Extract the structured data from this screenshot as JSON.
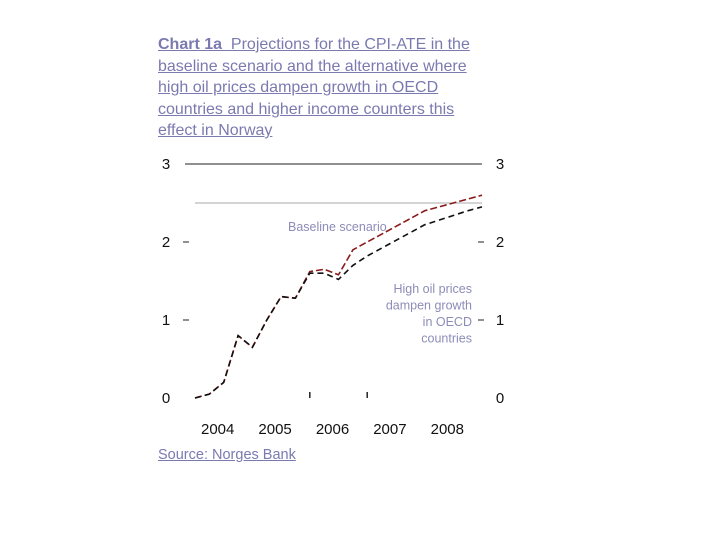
{
  "title": {
    "label": "Chart 1a",
    "text": "Projections for the CPI-ATE in the baseline scenario and the alternative where high oil prices dampen growth in OECD countries and higher income counters this effect in Norway"
  },
  "source": {
    "label": "Source:",
    "text": "Norges Bank"
  },
  "colors": {
    "baseline": "#8b1a1a",
    "high_oil": "#111111",
    "annotation": "#8c8cb8"
  },
  "chart_data": {
    "type": "line",
    "title": "Chart 1a  Projections for the CPI-ATE in the baseline scenario and the alternative where high oil prices dampen growth in OECD countries and higher income counters this effect in Norway",
    "xlabel": "",
    "ylabel": "",
    "xlim": [
      2004,
      2009
    ],
    "ylim": [
      0,
      3
    ],
    "x_ticks": [
      "2004",
      "2005",
      "2006",
      "2007",
      "2008"
    ],
    "y_ticks_left": [
      "0",
      "1",
      "2",
      "3"
    ],
    "y_ticks_right": [
      "0",
      "1",
      "2",
      "3"
    ],
    "grid": false,
    "annotations": [
      "Baseline scenario",
      "High oil prices dampen growth in OECD countries"
    ],
    "series": [
      {
        "name": "Baseline scenario",
        "x": [
          2004.0,
          2004.25,
          2004.5,
          2004.75,
          2005.0,
          2005.25,
          2005.5,
          2005.75,
          2006.0,
          2006.25,
          2006.5,
          2006.75,
          2007.0,
          2007.25,
          2007.5,
          2007.75,
          2008.0,
          2008.25,
          2008.5,
          2008.75,
          2009.0
        ],
        "values": [
          0.0,
          0.05,
          0.2,
          0.8,
          0.65,
          1.0,
          1.3,
          1.28,
          1.62,
          1.65,
          1.58,
          1.9,
          2.0,
          2.1,
          2.2,
          2.3,
          2.4,
          2.45,
          2.5,
          2.55,
          2.6
        ]
      },
      {
        "name": "High oil prices dampen growth in OECD countries",
        "x": [
          2004.0,
          2004.25,
          2004.5,
          2004.75,
          2005.0,
          2005.25,
          2005.5,
          2005.75,
          2006.0,
          2006.25,
          2006.5,
          2006.75,
          2007.0,
          2007.25,
          2007.5,
          2007.75,
          2008.0,
          2008.25,
          2008.5,
          2008.75,
          2009.0
        ],
        "values": [
          0.0,
          0.05,
          0.2,
          0.8,
          0.65,
          1.0,
          1.3,
          1.28,
          1.6,
          1.6,
          1.52,
          1.7,
          1.82,
          1.92,
          2.02,
          2.12,
          2.22,
          2.28,
          2.34,
          2.4,
          2.45
        ]
      }
    ]
  }
}
